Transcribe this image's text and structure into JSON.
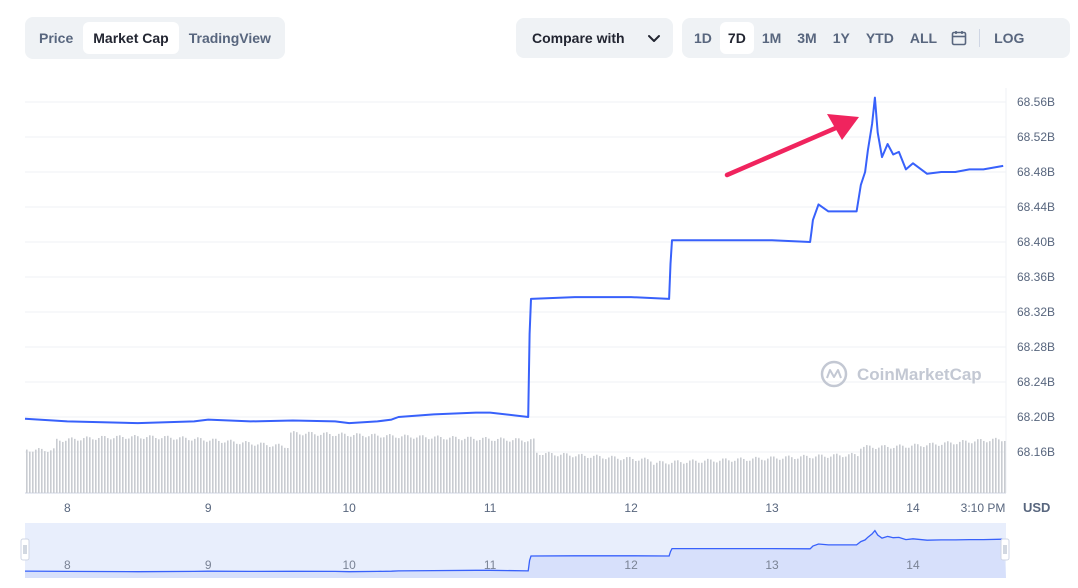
{
  "tabs": {
    "items": [
      "Price",
      "Market Cap",
      "TradingView"
    ],
    "active": 1
  },
  "compare": {
    "label": "Compare with"
  },
  "ranges": {
    "items": [
      "1D",
      "7D",
      "1M",
      "3M",
      "1Y",
      "YTD",
      "ALL"
    ],
    "active": 1,
    "log_label": "LOG"
  },
  "watermark": "CoinMarketCap",
  "colors": {
    "line": "#3861fb",
    "arrow": "#f0245e",
    "volume": "#c9ccd1",
    "navigator_fill": "#e8eefc"
  },
  "chart_data": {
    "type": "line",
    "ylabel": "",
    "y_unit": "USD",
    "ylim": [
      68.13,
      68.57
    ],
    "yticks": [
      "68.16B",
      "68.20B",
      "68.24B",
      "68.28B",
      "68.32B",
      "68.36B",
      "68.40B",
      "68.44B",
      "68.48B",
      "68.52B",
      "68.56B"
    ],
    "x_labels": [
      "8",
      "9",
      "10",
      "11",
      "12",
      "13",
      "14",
      "3:10 PM"
    ],
    "navigator_labels": [
      "8",
      "9",
      "10",
      "11",
      "12",
      "13",
      "14"
    ],
    "series": [
      {
        "values_unit": "billion USD",
        "x": [
          7.7,
          8.0,
          8.5,
          8.9,
          9.0,
          9.3,
          9.6,
          9.9,
          10.0,
          10.2,
          10.3,
          10.35,
          10.6,
          10.9,
          11.0,
          11.27,
          11.28,
          11.29,
          11.6,
          12.0,
          12.27,
          12.28,
          12.29,
          12.5,
          12.8,
          13.0,
          13.27,
          13.28,
          13.29,
          13.33,
          13.4,
          13.6,
          13.63,
          13.66,
          13.68,
          13.71,
          13.73,
          13.75,
          13.78,
          13.82,
          13.86,
          13.9,
          13.95,
          14.0,
          14.1,
          14.2,
          14.3,
          14.4,
          14.5,
          14.64
        ],
        "values": [
          68.198,
          68.195,
          68.193,
          68.195,
          68.197,
          68.195,
          68.196,
          68.195,
          68.193,
          68.195,
          68.197,
          68.2,
          68.203,
          68.205,
          68.205,
          68.2,
          68.295,
          68.335,
          68.337,
          68.337,
          68.335,
          68.375,
          68.402,
          68.402,
          68.402,
          68.402,
          68.4,
          68.412,
          68.425,
          68.443,
          68.435,
          68.435,
          68.465,
          68.48,
          68.505,
          68.535,
          68.565,
          68.525,
          68.497,
          68.512,
          68.5,
          68.503,
          68.483,
          68.49,
          68.478,
          68.48,
          68.48,
          68.483,
          68.483,
          68.487
        ]
      }
    ],
    "annotations": [
      {
        "type": "arrow",
        "points_to": "peak"
      }
    ],
    "grid": true,
    "volume_bars": true,
    "navigator": true
  }
}
